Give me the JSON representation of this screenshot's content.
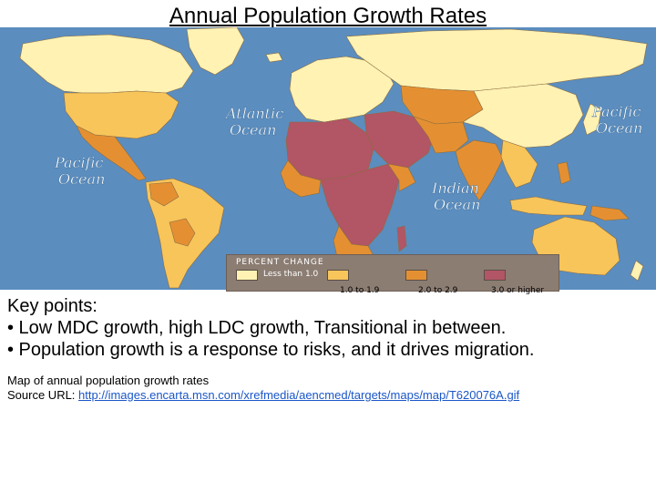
{
  "page": {
    "title": "Annual Population Growth Rates"
  },
  "map": {
    "ocean_labels": {
      "atlantic_1": "Atlantic",
      "atlantic_2": "Ocean",
      "pacific_east_1": "Pacific",
      "pacific_east_2": "Ocean",
      "pacific_west_1": "Pacific",
      "pacific_west_2": "Ocean",
      "indian_1": "Indian",
      "indian_2": "Ocean"
    },
    "colors": {
      "ocean": "#5b8dbf",
      "less_than_1": "#fff2b3",
      "one_to_1_9": "#f8c55b",
      "two_to_2_9": "#e49032",
      "three_plus": "#b25565"
    },
    "legend": {
      "title": "PERCENT CHANGE",
      "items": [
        {
          "label": "Less than 1.0",
          "color": "#fff2b3"
        },
        {
          "label": "1.0 to 1.9",
          "color": "#f8c55b"
        },
        {
          "label": "2.0 to 2.9",
          "color": "#e49032"
        },
        {
          "label": "3.0 or higher",
          "color": "#b25565"
        }
      ]
    }
  },
  "notes": {
    "heading": "Key points:",
    "bullets": [
      "• Low MDC growth, high LDC growth, Transitional in between.",
      "• Population growth is a response to risks, and it drives migration."
    ],
    "caption": "Map of annual population growth rates",
    "source_label": "Source URL:",
    "source_url": "http://images.encarta.msn.com/xrefmedia/aencmed/targets/maps/map/T620076A.gif"
  }
}
